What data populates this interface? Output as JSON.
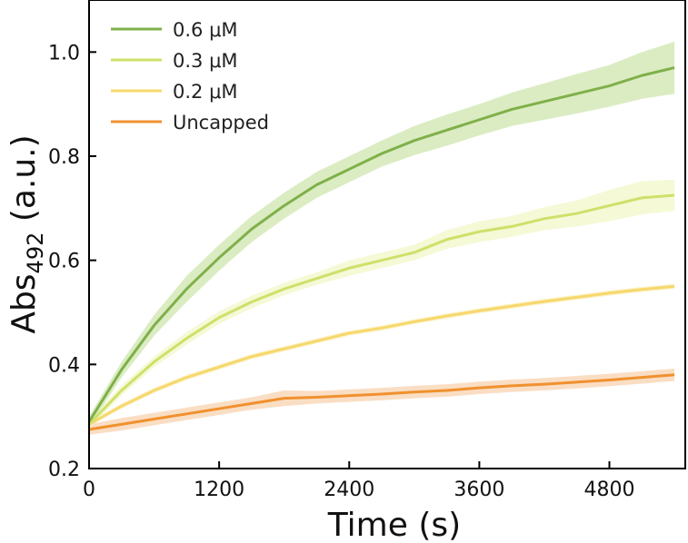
{
  "chart_data": {
    "type": "line",
    "title": "",
    "xlabel": "Time (s)",
    "ylabel_main": "Abs",
    "ylabel_sub": "492",
    "ylabel_unit": " (a.u.)",
    "xlim": [
      0,
      5500
    ],
    "ylim": [
      0.2,
      1.1
    ],
    "xticks": [
      0,
      1200,
      2400,
      3600,
      4800
    ],
    "xtick_labels": [
      "0",
      "1200",
      "2400",
      "3600",
      "4800"
    ],
    "yticks": [
      0.2,
      0.4,
      0.6,
      0.8,
      1.0
    ],
    "ytick_labels": [
      "0.2",
      "0.4",
      "0.6",
      "0.8",
      "1.0"
    ],
    "grid": false,
    "legend_position": "top-left",
    "x": [
      0,
      300,
      600,
      900,
      1200,
      1500,
      1800,
      2100,
      2400,
      2700,
      3000,
      3300,
      3600,
      3900,
      4200,
      4500,
      4800,
      5100,
      5400
    ],
    "series": [
      {
        "name": "0.6 μM",
        "color": "#7fb04a",
        "band_color": "#cfe6ad",
        "values": [
          0.29,
          0.39,
          0.475,
          0.545,
          0.605,
          0.66,
          0.705,
          0.745,
          0.775,
          0.805,
          0.83,
          0.85,
          0.87,
          0.89,
          0.905,
          0.92,
          0.935,
          0.955,
          0.97
        ],
        "spread": [
          0.01,
          0.015,
          0.02,
          0.025,
          0.025,
          0.025,
          0.025,
          0.025,
          0.025,
          0.025,
          0.028,
          0.03,
          0.03,
          0.032,
          0.035,
          0.038,
          0.04,
          0.045,
          0.05
        ]
      },
      {
        "name": "0.3 μM",
        "color": "#cfe06a",
        "band_color": "#f1f7c8",
        "values": [
          0.285,
          0.35,
          0.405,
          0.45,
          0.49,
          0.52,
          0.545,
          0.565,
          0.585,
          0.6,
          0.615,
          0.64,
          0.655,
          0.665,
          0.68,
          0.69,
          0.705,
          0.72,
          0.725
        ],
        "spread": [
          0.008,
          0.01,
          0.01,
          0.012,
          0.012,
          0.012,
          0.012,
          0.012,
          0.015,
          0.015,
          0.015,
          0.018,
          0.02,
          0.02,
          0.022,
          0.025,
          0.03,
          0.032,
          0.03
        ]
      },
      {
        "name": "0.2 μM",
        "color": "#f6d86b",
        "band_color": "#fbefc0",
        "values": [
          0.285,
          0.32,
          0.35,
          0.375,
          0.395,
          0.415,
          0.43,
          0.445,
          0.46,
          0.47,
          0.482,
          0.493,
          0.503,
          0.512,
          0.521,
          0.529,
          0.537,
          0.544,
          0.55
        ],
        "spread": [
          0.004,
          0.005,
          0.005,
          0.005,
          0.005,
          0.005,
          0.005,
          0.005,
          0.005,
          0.005,
          0.005,
          0.005,
          0.005,
          0.005,
          0.005,
          0.005,
          0.005,
          0.005,
          0.005
        ]
      },
      {
        "name": "Uncapped",
        "color": "#f0912e",
        "band_color": "#f8d3b0",
        "values": [
          0.275,
          0.285,
          0.295,
          0.305,
          0.315,
          0.325,
          0.335,
          0.337,
          0.34,
          0.343,
          0.347,
          0.35,
          0.355,
          0.359,
          0.362,
          0.366,
          0.37,
          0.375,
          0.38
        ],
        "spread": [
          0.01,
          0.012,
          0.012,
          0.012,
          0.012,
          0.012,
          0.015,
          0.012,
          0.012,
          0.012,
          0.012,
          0.012,
          0.012,
          0.012,
          0.012,
          0.012,
          0.012,
          0.012,
          0.012
        ]
      }
    ]
  }
}
